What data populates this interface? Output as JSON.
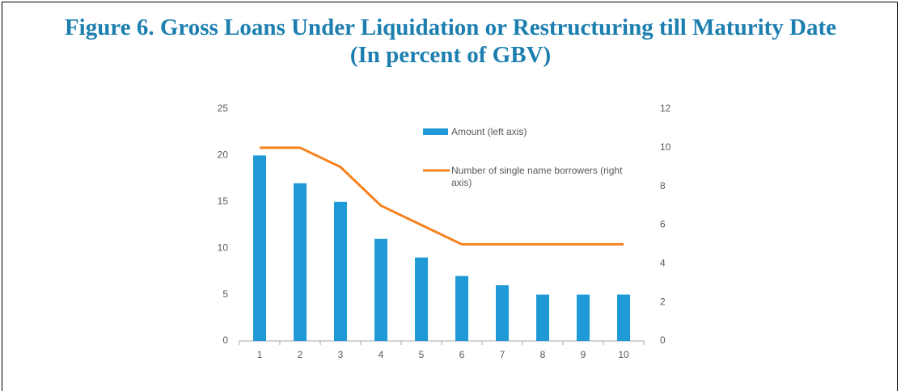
{
  "chart_data": {
    "type": "bar-line",
    "title": "Figure 6. Gross Loans Under Liquidation or Restructuring till Maturity Date",
    "subtitle": "(In percent of GBV)",
    "categories": [
      "1",
      "2",
      "3",
      "4",
      "5",
      "6",
      "7",
      "8",
      "9",
      "10"
    ],
    "series": [
      {
        "name": "Amount (left axis)",
        "type": "bar",
        "color": "#1f9ad6",
        "values": [
          20,
          17,
          15,
          11,
          9,
          7,
          6,
          5,
          5,
          5
        ]
      },
      {
        "name": "Number of single name borrowers (right axis)",
        "type": "line",
        "axis": "y2",
        "color": "#f5821f",
        "values": [
          10,
          10,
          9,
          7,
          6,
          5,
          5,
          5,
          5,
          5
        ]
      }
    ],
    "ylim": [
      0,
      25
    ],
    "yticks": [
      0,
      5,
      10,
      15,
      20,
      25
    ],
    "y2lim": [
      0,
      12
    ],
    "y2ticks": [
      0,
      2,
      4,
      6,
      8,
      10,
      12
    ],
    "grid": false
  }
}
